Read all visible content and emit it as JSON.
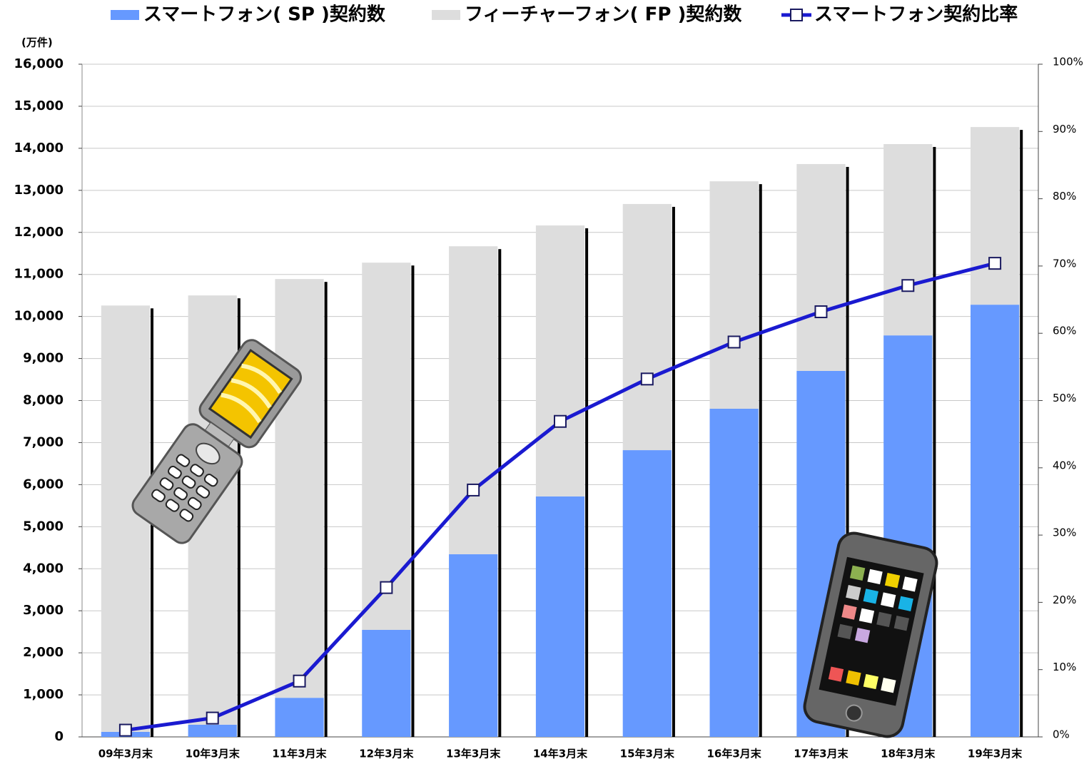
{
  "chart_data": {
    "type": "bar",
    "y_unit": "(万件)",
    "categories": [
      "09年3月末",
      "10年3月末",
      "11年3月末",
      "12年3月末",
      "13年3月末",
      "14年3月末",
      "15年3月末",
      "16年3月末",
      "17年3月末",
      "18年3月末",
      "19年3月末"
    ],
    "series": [
      {
        "name": "スマートフォン( SP )契約数",
        "color": "#6699ff",
        "values": [
          120,
          290,
          930,
          2545,
          4345,
          5720,
          6820,
          7805,
          8705,
          9550,
          10280
        ]
      },
      {
        "name": "フィーチャーフォン( FP )契約数",
        "color": "#dddddd",
        "values": [
          10140,
          10210,
          9960,
          8735,
          7325,
          6445,
          5855,
          5410,
          4920,
          4550,
          4225
        ]
      },
      {
        "name": "スマートフォン契約比率",
        "color": "#1a1ad0",
        "type": "line",
        "axis": "y2",
        "values": [
          1.0,
          2.8,
          8.3,
          22.2,
          36.7,
          46.9,
          53.2,
          58.7,
          63.2,
          67.1,
          70.4
        ]
      }
    ],
    "ylim": [
      0,
      16000
    ],
    "yticks": [
      0,
      {
        "value": 1000,
        "label": "1,000"
      },
      {
        "value": 2000,
        "label": "2,000"
      },
      {
        "value": 3000,
        "label": "3,000"
      },
      {
        "value": 4000,
        "label": "4,000"
      },
      {
        "value": 5000,
        "label": "5,000"
      },
      {
        "value": 6000,
        "label": "6,000"
      },
      {
        "value": 7000,
        "label": "7,000"
      },
      {
        "value": 8000,
        "label": "8,000"
      },
      {
        "value": 9000,
        "label": "9,000"
      },
      {
        "value": 10000,
        "label": "10,000"
      },
      {
        "value": 11000,
        "label": "11,000"
      },
      {
        "value": 12000,
        "label": "12,000"
      },
      {
        "value": 13000,
        "label": "13,000"
      },
      {
        "value": 14000,
        "label": "14,000"
      },
      {
        "value": 15000,
        "label": "15,000"
      },
      {
        "value": 16000,
        "label": "16,000"
      }
    ],
    "y2lim": [
      0,
      100
    ],
    "y2ticks": [
      {
        "value": 0,
        "label": "0%"
      },
      {
        "value": 10,
        "label": "10%"
      },
      {
        "value": 20,
        "label": "20%"
      },
      {
        "value": 30,
        "label": "30%"
      },
      {
        "value": 40,
        "label": "40%"
      },
      {
        "value": 50,
        "label": "50%"
      },
      {
        "value": 60,
        "label": "60%"
      },
      {
        "value": 70,
        "label": "70%"
      },
      {
        "value": 80,
        "label": "80%"
      },
      {
        "value": 90,
        "label": "90%"
      },
      {
        "value": 100,
        "label": "100%"
      }
    ],
    "grid": true,
    "legend": "top",
    "stacked": true
  }
}
